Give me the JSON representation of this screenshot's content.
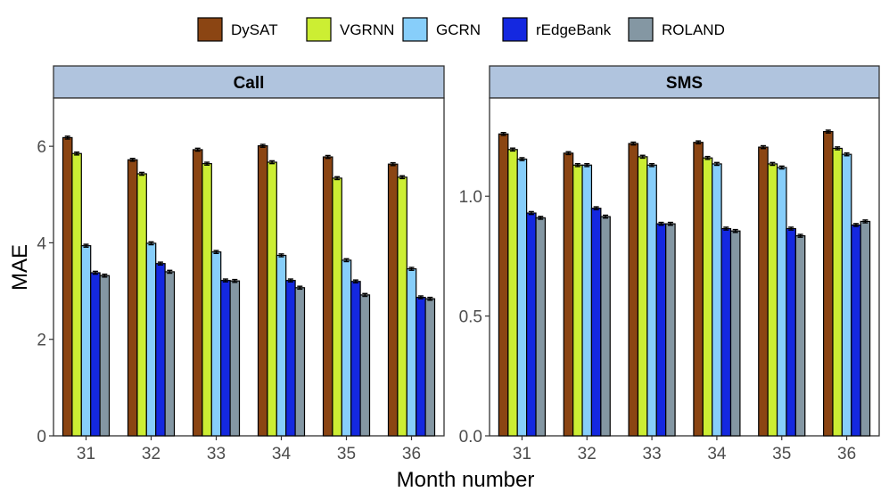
{
  "chart_data": {
    "type": "bar",
    "xlabel": "Month number",
    "ylabel": "MAE",
    "categories": [
      "31",
      "32",
      "33",
      "34",
      "35",
      "36"
    ],
    "legend": [
      {
        "name": "DySAT",
        "color": "#8B4513"
      },
      {
        "name": "VGRNN",
        "color": "#CCEE33"
      },
      {
        "name": "GCRN",
        "color": "#87CEFA"
      },
      {
        "name": "rEdgeBank",
        "color": "#1428E0"
      },
      {
        "name": "ROLAND",
        "color": "#8497A3"
      }
    ],
    "panels": [
      {
        "title": "Call",
        "ylim": [
          0,
          7
        ],
        "yticks": [
          0,
          2,
          4,
          6
        ],
        "ytick_labels": [
          "0",
          "2",
          "4",
          "6"
        ],
        "series": [
          {
            "name": "DySAT",
            "values": [
              6.18,
              5.72,
              5.93,
              6.01,
              5.78,
              5.63
            ]
          },
          {
            "name": "VGRNN",
            "values": [
              5.85,
              5.43,
              5.64,
              5.67,
              5.34,
              5.36
            ]
          },
          {
            "name": "GCRN",
            "values": [
              3.94,
              3.99,
              3.81,
              3.74,
              3.64,
              3.46
            ]
          },
          {
            "name": "rEdgeBank",
            "values": [
              3.38,
              3.57,
              3.22,
              3.22,
              3.2,
              2.87
            ]
          },
          {
            "name": "ROLAND",
            "values": [
              3.32,
              3.4,
              3.21,
              3.07,
              2.92,
              2.84
            ]
          }
        ]
      },
      {
        "title": "SMS",
        "ylim": [
          0,
          1.41
        ],
        "yticks": [
          0,
          0.5,
          1.0
        ],
        "ytick_labels": [
          "0.0",
          "0.5",
          "1.0"
        ],
        "series": [
          {
            "name": "DySAT",
            "values": [
              1.26,
              1.18,
              1.22,
              1.225,
              1.205,
              1.27
            ]
          },
          {
            "name": "VGRNN",
            "values": [
              1.195,
              1.13,
              1.165,
              1.16,
              1.135,
              1.2
            ]
          },
          {
            "name": "GCRN",
            "values": [
              1.155,
              1.13,
              1.13,
              1.135,
              1.12,
              1.175
            ]
          },
          {
            "name": "rEdgeBank",
            "values": [
              0.93,
              0.95,
              0.885,
              0.865,
              0.865,
              0.88
            ]
          },
          {
            "name": "ROLAND",
            "values": [
              0.91,
              0.915,
              0.885,
              0.855,
              0.835,
              0.895
            ]
          }
        ]
      }
    ]
  }
}
